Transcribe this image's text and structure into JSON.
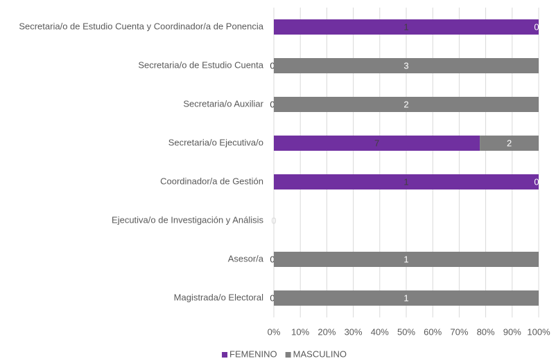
{
  "chart_data": {
    "type": "bar",
    "orientation": "horizontal",
    "stacking": "percent",
    "categories": [
      "Secretaria/o de Estudio Cuenta y Coordinador/a de Ponencia",
      "Secretaria/o de Estudio Cuenta",
      "Secretaria/o Auxiliar",
      "Secretaria/o Ejecutiva/o",
      "Coordinador/a de Gestión",
      "Ejecutiva/o de Investigación y Análisis",
      "Asesor/a",
      "Magistrada/o Electoral"
    ],
    "series": [
      {
        "name": "FEMENINO",
        "color": "#7030a0",
        "values": [
          1,
          0,
          0,
          7,
          1,
          0,
          0,
          0
        ]
      },
      {
        "name": "MASCULINO",
        "color": "#808080",
        "values": [
          0,
          3,
          2,
          2,
          0,
          0,
          1,
          1
        ]
      }
    ],
    "xlim": [
      0,
      100
    ],
    "xticks": [
      {
        "value": 0,
        "label": "0%"
      },
      {
        "value": 10,
        "label": "10%"
      },
      {
        "value": 20,
        "label": "20%"
      },
      {
        "value": 30,
        "label": "30%"
      },
      {
        "value": 40,
        "label": "40%"
      },
      {
        "value": 50,
        "label": "50%"
      },
      {
        "value": 60,
        "label": "60%"
      },
      {
        "value": 70,
        "label": "70%"
      },
      {
        "value": 80,
        "label": "80%"
      },
      {
        "value": 90,
        "label": "90%"
      },
      {
        "value": 100,
        "label": "100%"
      }
    ],
    "grid": true,
    "legend": "bottom"
  }
}
